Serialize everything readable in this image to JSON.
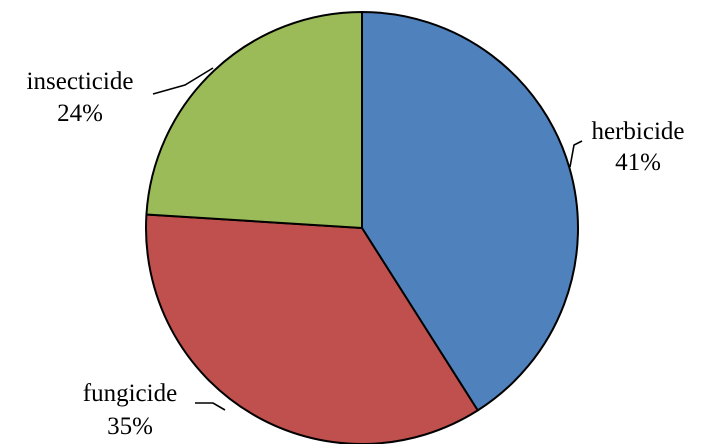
{
  "chart_data": {
    "type": "pie",
    "title": "",
    "slices": [
      {
        "label": "herbicide",
        "value": 41,
        "value_label": "41%",
        "color": "#4F81BD"
      },
      {
        "label": "fungicide",
        "value": 35,
        "value_label": "35%",
        "color": "#C0504D"
      },
      {
        "label": "insecticide",
        "value": 24,
        "value_label": "24%",
        "color": "#9BBB59"
      }
    ],
    "start_angle": "12 o'clock, clockwise",
    "legend": "none (labels outside slices with leader lines)"
  }
}
